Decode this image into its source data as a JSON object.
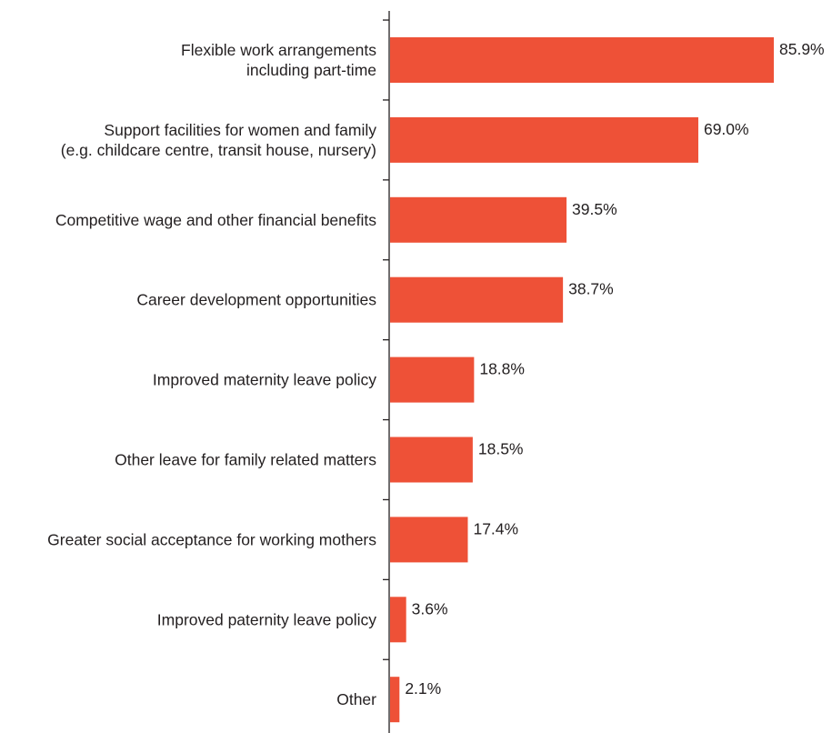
{
  "chart_data": {
    "type": "bar",
    "orientation": "horizontal",
    "categories": [
      [
        "Flexible work arrangements",
        "including part-time"
      ],
      [
        "Support facilities for women and family",
        "(e.g. childcare centre, transit house, nursery)"
      ],
      [
        "Competitive wage and other financial benefits"
      ],
      [
        "Career development opportunities"
      ],
      [
        "Improved maternity leave policy"
      ],
      [
        "Other leave for family related matters"
      ],
      [
        "Greater social acceptance for working mothers"
      ],
      [
        "Improved paternity leave policy"
      ],
      [
        "Other"
      ]
    ],
    "values": [
      85.9,
      69.0,
      39.5,
      38.7,
      18.8,
      18.5,
      17.4,
      3.6,
      2.1
    ],
    "value_labels": [
      "85.9%",
      "69.0%",
      "39.5%",
      "38.7%",
      "18.8%",
      "18.5%",
      "17.4%",
      "3.6%",
      "2.1%"
    ],
    "unit": "%",
    "xlim": [
      0,
      100
    ],
    "grid": false,
    "legend": "none",
    "colors": {
      "bar": "#ee5137",
      "axis": "#231f20",
      "text": "#231f20"
    }
  }
}
